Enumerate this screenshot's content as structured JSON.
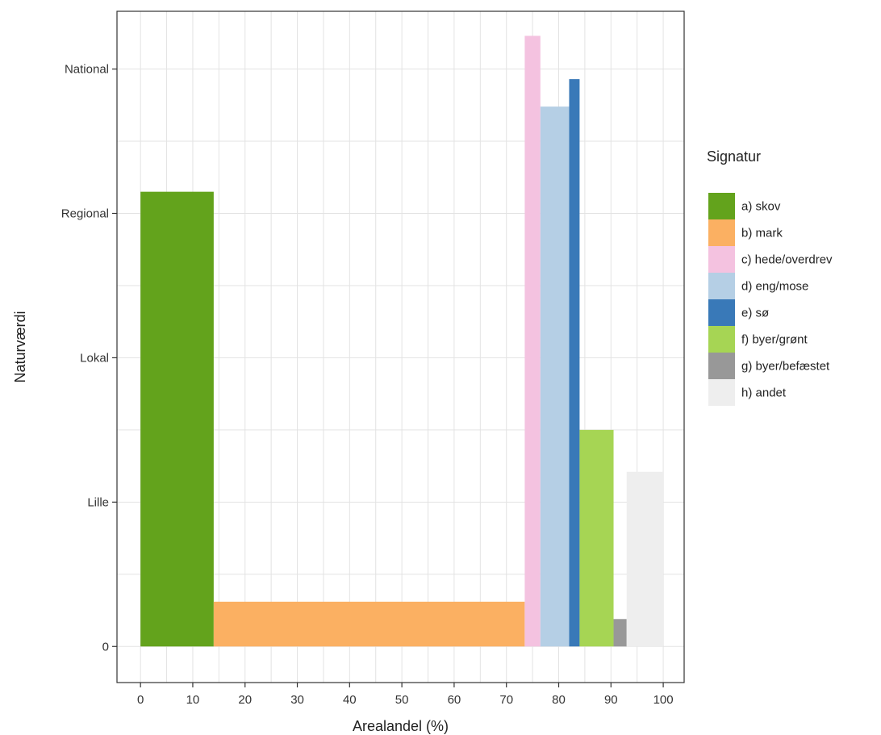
{
  "chart_data": {
    "type": "bar",
    "title": "",
    "xlabel": "Arealandel (%)",
    "ylabel": "Naturværdi",
    "xlim": [
      -4.5,
      104
    ],
    "ylim": [
      -0.25,
      4.4
    ],
    "x_ticks": [
      0,
      10,
      20,
      30,
      40,
      50,
      60,
      70,
      80,
      90,
      100
    ],
    "y_ticks": [
      {
        "value": 0,
        "label": "0"
      },
      {
        "value": 1,
        "label": "Lille"
      },
      {
        "value": 2,
        "label": "Lokal"
      },
      {
        "value": 3,
        "label": "Regional"
      },
      {
        "value": 4,
        "label": "National"
      }
    ],
    "grid": true,
    "legend": {
      "title": "Signatur",
      "placement": "right"
    },
    "series": [
      {
        "name": "a) skov",
        "color": "#63a31c",
        "x_start": 0,
        "x_end": 14,
        "value": 3.15
      },
      {
        "name": "b) mark",
        "color": "#fbb062",
        "x_start": 14,
        "x_end": 73.5,
        "value": 0.31
      },
      {
        "name": "c) hede/overdrev",
        "color": "#f4c2e0",
        "x_start": 73.5,
        "x_end": 76.5,
        "value": 4.23
      },
      {
        "name": "d) eng/mose",
        "color": "#b5cfe5",
        "x_start": 76.5,
        "x_end": 82,
        "value": 3.74
      },
      {
        "name": "e) sø",
        "color": "#3979b8",
        "x_start": 82,
        "x_end": 84,
        "value": 3.93
      },
      {
        "name": "f) byer/grønt",
        "color": "#a6d554",
        "x_start": 84,
        "x_end": 90.5,
        "value": 1.5
      },
      {
        "name": "g) byer/befæstet",
        "color": "#989898",
        "x_start": 90.5,
        "x_end": 93,
        "value": 0.19
      },
      {
        "name": "h) andet",
        "color": "#eeeeee",
        "x_start": 93,
        "x_end": 100,
        "value": 1.21
      }
    ]
  }
}
